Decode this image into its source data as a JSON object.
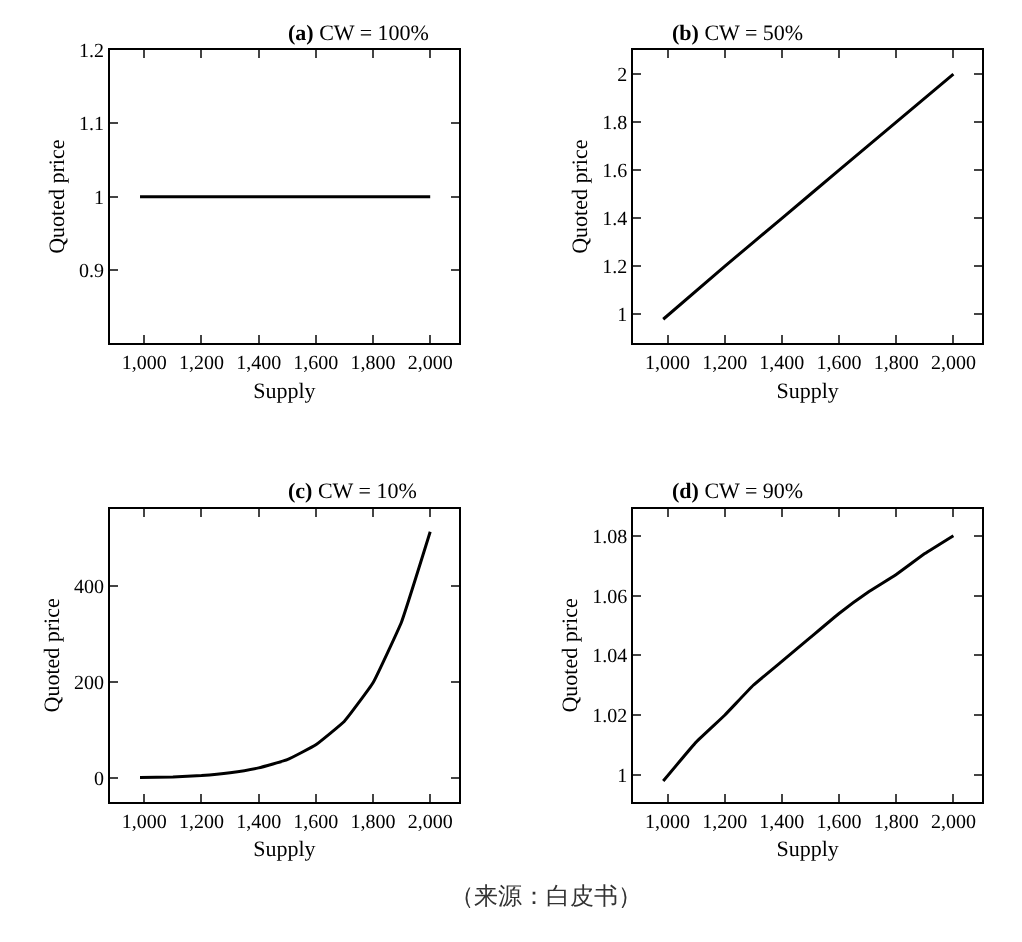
{
  "chart_data": [
    {
      "type": "line",
      "title": "(a) CW = 100%",
      "xlabel": "Supply",
      "ylabel": "Quoted price",
      "x": [
        985,
        2000
      ],
      "values": [
        1,
        1
      ],
      "color": "#000000",
      "xlim": [
        880,
        2100
      ],
      "ylim": [
        0.8,
        1.2
      ],
      "xticks": [
        {
          "value": 1000,
          "label": "1,000"
        },
        {
          "value": 1200,
          "label": "1,200"
        },
        {
          "value": 1400,
          "label": "1,400"
        },
        {
          "value": 1600,
          "label": "1,600"
        },
        {
          "value": 1800,
          "label": "1,800"
        },
        {
          "value": 2000,
          "label": "2,000"
        }
      ],
      "yticks": [
        0.9,
        1,
        1.1,
        1.2
      ],
      "marker": "none",
      "line_style": "solid"
    },
    {
      "type": "line",
      "title": "(b) CW = 50%",
      "xlabel": "Supply",
      "ylabel": "Quoted price",
      "x": [
        985,
        1200,
        1400,
        1600,
        1800,
        2000
      ],
      "values": [
        0.98,
        1.2,
        1.4,
        1.6,
        1.8,
        2
      ],
      "color": "#000000",
      "xlim": [
        880,
        2100
      ],
      "ylim": [
        0.88,
        2.1
      ],
      "xticks": [
        {
          "value": 1000,
          "label": "1,000"
        },
        {
          "value": 1200,
          "label": "1,200"
        },
        {
          "value": 1400,
          "label": "1,400"
        },
        {
          "value": 1600,
          "label": "1,600"
        },
        {
          "value": 1800,
          "label": "1,800"
        },
        {
          "value": 2000,
          "label": "2,000"
        }
      ],
      "yticks": [
        1,
        1.2,
        1.4,
        1.6,
        1.8,
        2
      ],
      "marker": "none",
      "line_style": "solid"
    },
    {
      "type": "line",
      "title": "(c) CW = 10%",
      "xlabel": "Supply",
      "ylabel": "Quoted price",
      "x": [
        985,
        1100,
        1200,
        1300,
        1400,
        1500,
        1600,
        1700,
        1800,
        1900,
        2000
      ],
      "values": [
        1,
        2,
        5,
        11,
        21,
        38,
        69,
        118,
        198,
        325,
        512
      ],
      "color": "#000000",
      "xlim": [
        880,
        2100
      ],
      "ylim": [
        -50,
        560
      ],
      "xticks": [
        {
          "value": 1000,
          "label": "1,000"
        },
        {
          "value": 1200,
          "label": "1,200"
        },
        {
          "value": 1400,
          "label": "1,400"
        },
        {
          "value": 1600,
          "label": "1,600"
        },
        {
          "value": 1800,
          "label": "1,800"
        },
        {
          "value": 2000,
          "label": "2,000"
        }
      ],
      "yticks": [
        0,
        200,
        400
      ],
      "marker": "none",
      "line_style": "solid"
    },
    {
      "type": "line",
      "title": "(d) CW = 90%",
      "xlabel": "Supply",
      "ylabel": "Quoted price",
      "x": [
        985,
        1100,
        1200,
        1300,
        1400,
        1500,
        1600,
        1700,
        1800,
        1900,
        2000
      ],
      "values": [
        0.998,
        1.011,
        1.02,
        1.03,
        1.038,
        1.046,
        1.054,
        1.061,
        1.067,
        1.074,
        1.08
      ],
      "color": "#000000",
      "xlim": [
        880,
        2100
      ],
      "ylim": [
        0.991,
        1.089
      ],
      "xticks": [
        {
          "value": 1000,
          "label": "1,000"
        },
        {
          "value": 1200,
          "label": "1,200"
        },
        {
          "value": 1400,
          "label": "1,400"
        },
        {
          "value": 1600,
          "label": "1,600"
        },
        {
          "value": 1800,
          "label": "1,800"
        },
        {
          "value": 2000,
          "label": "2,000"
        }
      ],
      "yticks": [
        1,
        1.02,
        1.04,
        1.06,
        1.08
      ],
      "marker": "none",
      "line_style": "solid",
      "annotations": [
        "（来源：白皮书）"
      ]
    }
  ]
}
